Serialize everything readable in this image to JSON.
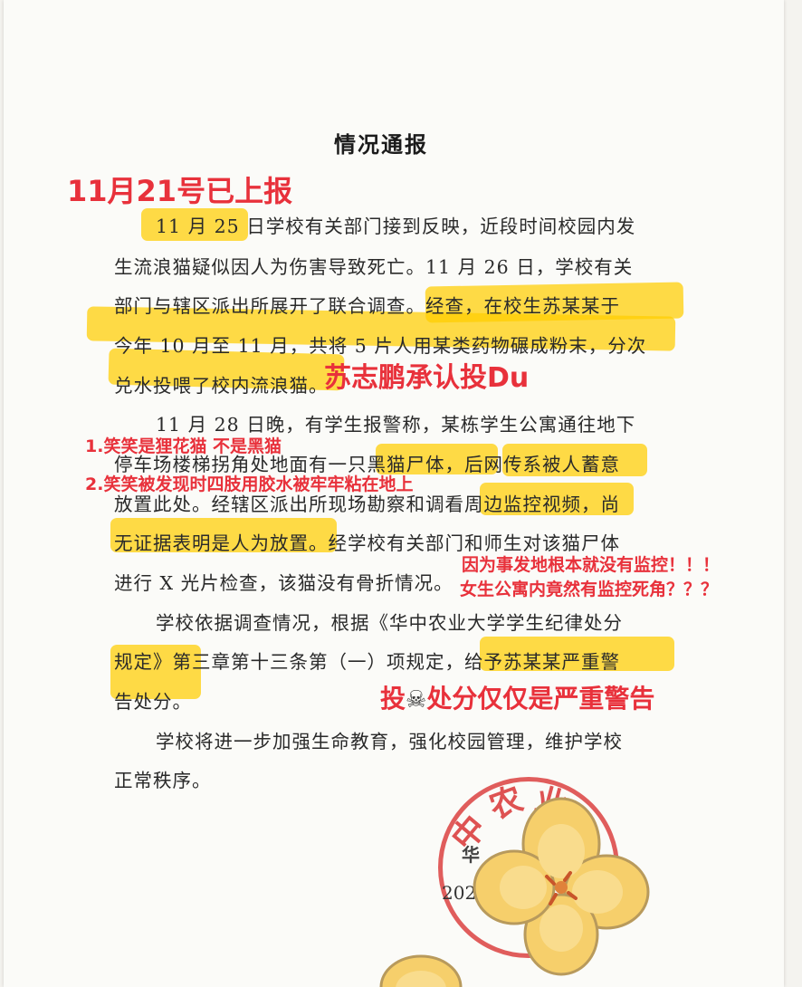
{
  "document": {
    "title": "情况通报",
    "lines": [
      "11 月 25 日学校有关部门接到反映，近段时间校园内发",
      "生流浪猫疑似因人为伤害导致死亡。11 月 26 日，学校有关",
      "部门与辖区派出所展开了联合调查。经查，在校生苏某某于",
      "今年 10 月至 11 月，共将 5 片人用某类药物碾成粉末，分次",
      "兑水投喂了校内流浪猫。",
      "11 月 28 日晚，有学生报警称，某栋学生公寓通往地下",
      "停车场楼梯拐角处地面有一只黑猫尸体，后网传系被人蓄意",
      "放置此处。经辖区派出所现场勘察和调看周边监控视频，尚",
      "无证据表明是人为放置。经学校有关部门和师生对该猫尸体",
      "进行 X 光片检查，该猫没有骨折情况。",
      "学校依据调查情况，根据《华中农业大学学生纪律处分",
      "规定》第三章第十三条第（一）项规定，给予苏某某严重警",
      "告处分。",
      "学校将进一步加强生命教育，强化校园管理，维护学校",
      "正常秩序。"
    ],
    "stamp_chars": [
      "中",
      "农",
      "业",
      "华"
    ],
    "date_fragment": "202"
  },
  "annotations": {
    "reported": "11月21号已上报",
    "admitted": "苏志鹏承认投Du",
    "cat_note_1": "1.笑笑是狸花猫 不是黑猫",
    "cat_note_2": "2.笑笑被发现时四肢用胶水被牢牢粘在地上",
    "monitor_note_1": "因为事发地根本就没有监控！！！",
    "monitor_note_2": "女生公寓内竟然有监控死角？？？",
    "punishment_prefix": "投",
    "punishment_icon": "☠",
    "punishment_suffix": "处分仅仅是严重警告"
  },
  "colors": {
    "annotation_red": "#e8313b",
    "highlight_yellow": "#ffcd00",
    "stamp_red": "#d72828",
    "flower_yellow": "#f6cf6b"
  }
}
